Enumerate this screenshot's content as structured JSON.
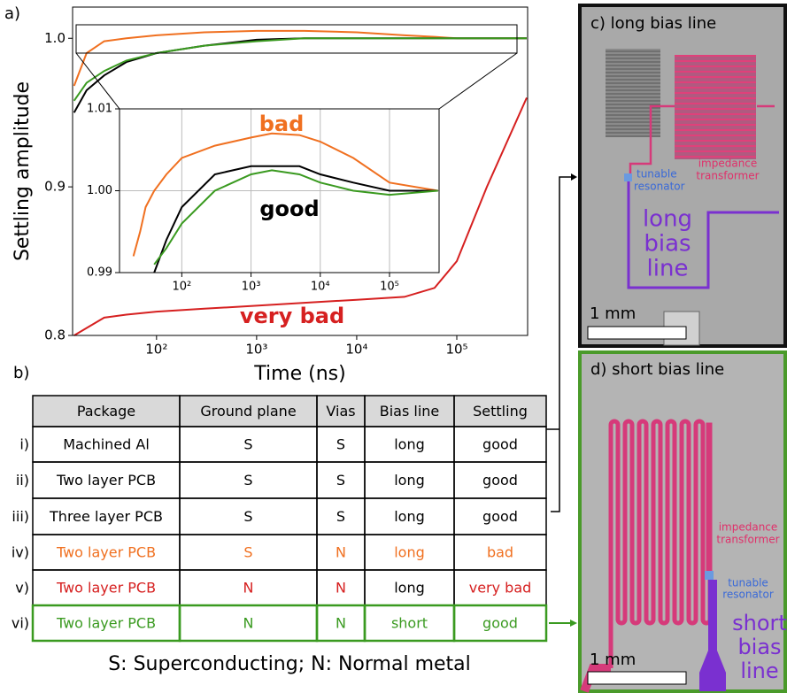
{
  "chart_data": [
    {
      "type": "line",
      "x_scale": "log",
      "xlim": [
        14.5,
        510000
      ],
      "ylim": [
        0.8,
        1.021
      ],
      "xticks": [
        {
          "value": 100,
          "label": "10²"
        },
        {
          "value": 1000,
          "label": "10³"
        },
        {
          "value": 10000,
          "label": "10⁴"
        },
        {
          "value": 100000,
          "label": "10⁵"
        }
      ],
      "yticks": [
        0.8,
        0.9,
        {
          "value": 1,
          "label": "1.0"
        }
      ],
      "ylabel": "Settling amplitude",
      "xlabel": "Time (ns)",
      "grid": false,
      "x": [
        15,
        20,
        30,
        50,
        100,
        300,
        1000,
        3000,
        10000,
        30000,
        60000,
        100000,
        200000,
        500000
      ],
      "series": [
        {
          "color": "#d62020",
          "values": [
            0.8,
            0.805,
            0.812,
            0.814,
            0.816,
            0.818,
            0.82,
            0.822,
            0.824,
            0.826,
            0.832,
            0.85,
            0.9,
            0.96
          ]
        },
        {
          "color": "#f07020",
          "values": [
            0.968,
            0.99,
            0.998,
            1.0,
            1.002,
            1.004,
            1.005,
            1.005,
            1.004,
            1.002,
            1.001,
            1.0,
            1.0,
            1.0
          ]
        },
        {
          "color": "#000000",
          "values": [
            0.95,
            0.965,
            0.975,
            0.984,
            0.99,
            0.995,
            0.999,
            1.0,
            1.0,
            1.0,
            1.0,
            1.0,
            1.0,
            1.0
          ]
        },
        {
          "color": "#3a9a20",
          "values": [
            0.958,
            0.97,
            0.978,
            0.985,
            0.99,
            0.995,
            0.998,
            1.0,
            1.0,
            1.0,
            1.0,
            1.0,
            1.0,
            1.0
          ]
        }
      ],
      "annotations": [
        {
          "text": "very bad",
          "color": "#d62020"
        }
      ]
    },
    {
      "type": "line",
      "x_scale": "log",
      "xlim": [
        12.6,
        520000
      ],
      "ylim": [
        0.99,
        1.01
      ],
      "xticks": [
        {
          "value": 100,
          "label": "10²"
        },
        {
          "value": 1000,
          "label": "10³"
        },
        {
          "value": 10000,
          "label": "10⁴"
        },
        {
          "value": 100000,
          "label": "10⁵"
        }
      ],
      "yticks": [
        0.99,
        {
          "value": 1,
          "label": "1.00"
        },
        1.01
      ],
      "grid": true,
      "x": [
        20,
        25,
        30,
        40,
        60,
        100,
        300,
        1000,
        2000,
        5000,
        10000,
        30000,
        100000,
        500000
      ],
      "series": [
        {
          "color": "#f07020",
          "values": [
            0.992,
            0.995,
            0.998,
            1.0,
            1.002,
            1.004,
            1.0055,
            1.0065,
            1.007,
            1.0068,
            1.006,
            1.004,
            1.001,
            1.0
          ]
        },
        {
          "color": "#000000",
          "values": [
            null,
            null,
            null,
            0.99,
            0.994,
            0.998,
            1.002,
            1.003,
            1.003,
            1.003,
            1.002,
            1.001,
            1.0,
            1.0
          ]
        },
        {
          "color": "#3a9a20",
          "values": [
            null,
            null,
            null,
            0.991,
            0.993,
            0.996,
            1.0,
            1.002,
            1.0025,
            1.002,
            1.001,
            1.0,
            0.9995,
            1.0
          ]
        }
      ],
      "annotations": [
        {
          "text": "bad",
          "color": "#f07020"
        },
        {
          "text": "good",
          "color": "#000000"
        }
      ]
    }
  ],
  "labels": {
    "a": "a)",
    "b": "b)"
  },
  "table": {
    "header": [
      "Package",
      "Ground plane",
      "Vias",
      "Bias line",
      "Settling"
    ],
    "row_labels": [
      "i)",
      "ii)",
      "iii)",
      "iv)",
      "v)",
      "vi)"
    ],
    "rows": [
      [
        "Machined Al",
        "S",
        "S",
        "long",
        "good"
      ],
      [
        "Two layer PCB",
        "S",
        "S",
        "long",
        "good"
      ],
      [
        "Three layer PCB",
        "S",
        "S",
        "long",
        "good"
      ],
      [
        "Two layer PCB",
        "S",
        "N",
        "long",
        "bad"
      ],
      [
        "Two layer PCB",
        "N",
        "N",
        "long",
        "very bad"
      ],
      [
        "Two layer PCB",
        "N",
        "N",
        "short",
        "good"
      ]
    ]
  },
  "footnote": "S: Superconducting; N: Normal metal",
  "panel_c": {
    "title": "c) long bias line",
    "tunable": [
      "tunable",
      "resonator"
    ],
    "transformer": [
      "impedance",
      "transformer"
    ],
    "bias": [
      "long",
      "bias",
      "line"
    ],
    "scale": "1 mm"
  },
  "panel_d": {
    "title": "d) short bias line",
    "tunable": [
      "tunable",
      "resonator"
    ],
    "transformer": [
      "impedance",
      "transformer"
    ],
    "bias": [
      "short",
      "bias",
      "line"
    ],
    "scale": "1 mm"
  }
}
